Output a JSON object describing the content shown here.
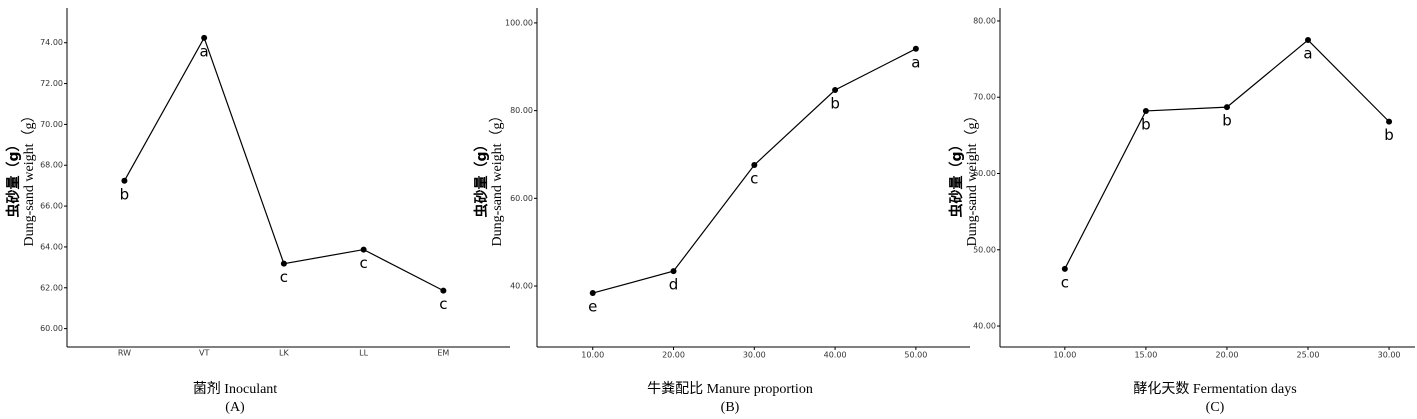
{
  "chart_data": [
    {
      "type": "line",
      "xlabel": "菌剂 Inoculant",
      "panel_label": "(A)",
      "ylabel": "虫砂量（g）",
      "ylabel_en": "Dung-sand weight（g）",
      "categories": [
        "RW",
        "VT",
        "LK",
        "LL",
        "EM"
      ],
      "values": [
        67.24,
        74.24,
        63.18,
        63.87,
        61.86
      ],
      "annotations": [
        "b",
        "a",
        "c",
        "c",
        "c"
      ],
      "color": "#000000",
      "ylim": [
        59.1,
        75.7
      ],
      "yticks": [
        {
          "value": 60,
          "label": "60.00"
        },
        {
          "value": 62,
          "label": "62.00"
        },
        {
          "value": 64,
          "label": "64.00"
        },
        {
          "value": 66,
          "label": "66.00"
        },
        {
          "value": 68,
          "label": "68.00"
        },
        {
          "value": 70,
          "label": "70.00"
        },
        {
          "value": 72,
          "label": "72.00"
        },
        {
          "value": 74,
          "label": "74.00"
        }
      ]
    },
    {
      "type": "line",
      "xlabel": "牛粪配比 Manure proportion",
      "panel_label": "(B)",
      "ylabel": "虫砂量（g）",
      "ylabel_en": "Dung-sand weight（g）",
      "x": [
        10,
        20,
        30,
        40,
        50
      ],
      "values": [
        38.4,
        43.4,
        67.6,
        84.7,
        94.1
      ],
      "annotations": [
        "e",
        "d",
        "c",
        "b",
        "a"
      ],
      "color": "#000000",
      "xlim": [
        3.1,
        56.7
      ],
      "ylim": [
        26.1,
        103.4
      ],
      "xticks": [
        {
          "value": 10,
          "label": "10.00"
        },
        {
          "value": 20,
          "label": "20.00"
        },
        {
          "value": 30,
          "label": "30.00"
        },
        {
          "value": 40,
          "label": "40.00"
        },
        {
          "value": 50,
          "label": "50.00"
        }
      ],
      "yticks": [
        {
          "value": 40,
          "label": "40.00"
        },
        {
          "value": 60,
          "label": "60.00"
        },
        {
          "value": 80,
          "label": "80.00"
        },
        {
          "value": 100,
          "label": "100.00"
        }
      ]
    },
    {
      "type": "line",
      "xlabel": "酵化天数 Fermentation days",
      "panel_label": "(C)",
      "ylabel": "虫砂量（g）",
      "ylabel_en": "Dung-sand weight（g）",
      "x": [
        10,
        15,
        20,
        25,
        30
      ],
      "values": [
        47.5,
        68.2,
        68.7,
        77.5,
        66.8
      ],
      "annotations": [
        "c",
        "b",
        "b",
        "a",
        "b"
      ],
      "color": "#000000",
      "xlim": [
        6.0,
        31.6
      ],
      "ylim": [
        37.25,
        81.7
      ],
      "xticks": [
        {
          "value": 10,
          "label": "10.00"
        },
        {
          "value": 15,
          "label": "15.00"
        },
        {
          "value": 20,
          "label": "20.00"
        },
        {
          "value": 25,
          "label": "25.00"
        },
        {
          "value": 30,
          "label": "30.00"
        }
      ],
      "yticks": [
        {
          "value": 40,
          "label": "40.00"
        },
        {
          "value": 50,
          "label": "50.00"
        },
        {
          "value": 60,
          "label": "60.00"
        },
        {
          "value": 70,
          "label": "70.00"
        },
        {
          "value": 80,
          "label": "80.00"
        }
      ]
    }
  ]
}
